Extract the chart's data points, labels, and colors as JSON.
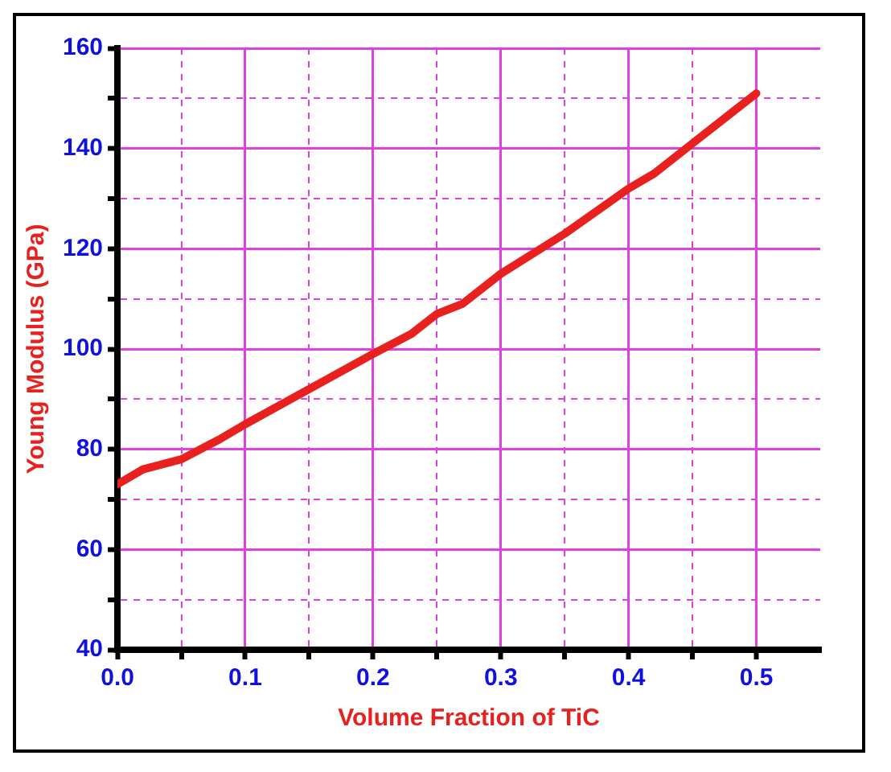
{
  "chart_data": {
    "type": "line",
    "xlabel": "Volume Fraction of TiC",
    "ylabel": "Young Modulus (GPa)",
    "x": [
      0,
      0.02,
      0.05,
      0.08,
      0.1,
      0.15,
      0.2,
      0.23,
      0.25,
      0.27,
      0.3,
      0.35,
      0.4,
      0.42,
      0.45,
      0.48,
      0.5
    ],
    "series": [
      {
        "color": "#e8201e",
        "values": [
          73,
          76,
          78,
          82,
          85,
          92,
          99,
          103,
          107,
          109,
          115,
          123,
          132,
          135,
          141,
          147,
          151
        ]
      }
    ],
    "xlim": [
      0,
      0.55
    ],
    "xticks": [
      {
        "value": 0,
        "label": "0.0"
      },
      {
        "value": 0.05,
        "label": null
      },
      0.1,
      {
        "value": 0.15,
        "label": null
      },
      0.2,
      {
        "value": 0.25,
        "label": null
      },
      0.3,
      {
        "value": 0.35,
        "label": null
      },
      0.4,
      {
        "value": 0.45,
        "label": null
      },
      0.5
    ],
    "ylim": [
      40,
      160
    ],
    "yticks": [
      40,
      {
        "value": 50,
        "label": null
      },
      60,
      {
        "value": 70,
        "label": null
      },
      80,
      {
        "value": 90,
        "label": null
      },
      100,
      {
        "value": 110,
        "label": null
      },
      120,
      {
        "value": 130,
        "label": null
      },
      140,
      {
        "value": 150,
        "label": null
      },
      160
    ],
    "grid": true,
    "marker": "none",
    "line_style": "solid",
    "legend": false
  }
}
